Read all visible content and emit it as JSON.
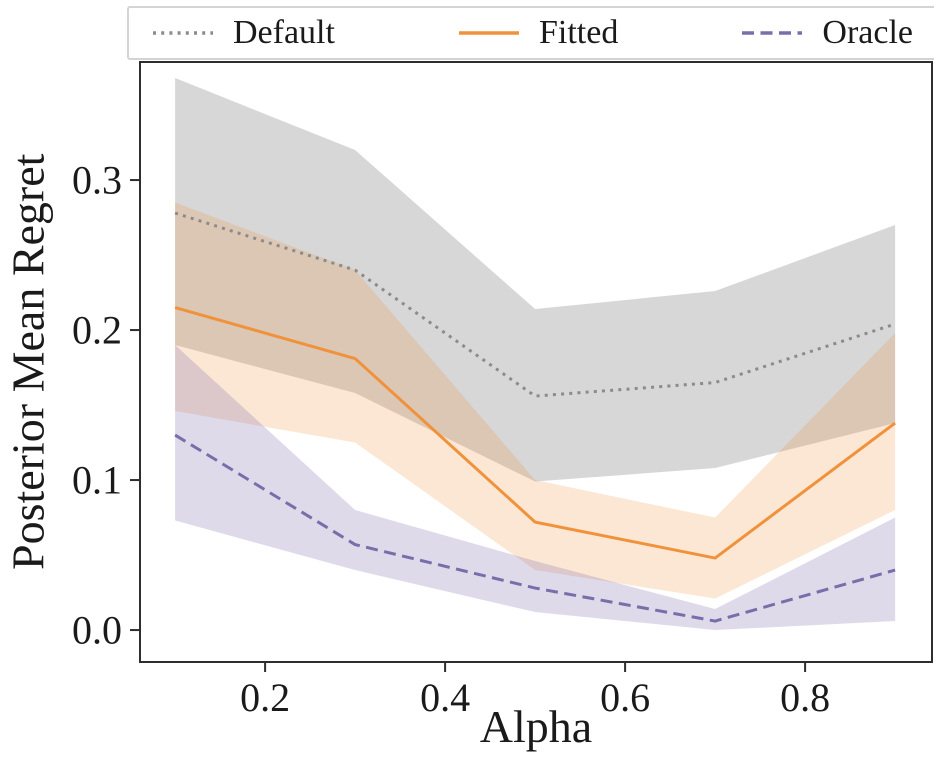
{
  "chart_data": {
    "type": "line",
    "title": "",
    "xlabel": "Alpha",
    "ylabel": "Posterior Mean Regret",
    "x": [
      0.1,
      0.3,
      0.5,
      0.7,
      0.9
    ],
    "x_ticks": [
      0.2,
      0.4,
      0.6,
      0.8
    ],
    "y_ticks": [
      0.0,
      0.1,
      0.2,
      0.3
    ],
    "xlim": [
      0.061,
      0.941
    ],
    "ylim": [
      -0.0213,
      0.3787
    ],
    "grid": false,
    "legend_position": "top",
    "series": [
      {
        "name": "Default",
        "style": "dotted",
        "color": "#8b8b8b",
        "band_opacity": 0.35,
        "values": [
          0.278,
          0.24,
          0.156,
          0.165,
          0.204
        ],
        "band_low": [
          0.19,
          0.158,
          0.099,
          0.108,
          0.138
        ],
        "band_high": [
          0.368,
          0.32,
          0.214,
          0.226,
          0.27
        ]
      },
      {
        "name": "Fitted",
        "style": "solid",
        "color": "#f0923c",
        "band_opacity": 0.22,
        "values": [
          0.215,
          0.181,
          0.072,
          0.048,
          0.138
        ],
        "band_low": [
          0.146,
          0.125,
          0.04,
          0.021,
          0.08
        ],
        "band_high": [
          0.285,
          0.24,
          0.1,
          0.075,
          0.198
        ]
      },
      {
        "name": "Oracle",
        "style": "dashed",
        "color": "#7b6daa",
        "band_opacity": 0.25,
        "values": [
          0.13,
          0.057,
          0.028,
          0.006,
          0.04
        ],
        "band_low": [
          0.073,
          0.04,
          0.012,
          0.0,
          0.006
        ],
        "band_high": [
          0.19,
          0.08,
          0.046,
          0.014,
          0.075
        ]
      }
    ],
    "frame_color": "#2e2e2e",
    "tick_label_color": "#1a1a1a"
  }
}
